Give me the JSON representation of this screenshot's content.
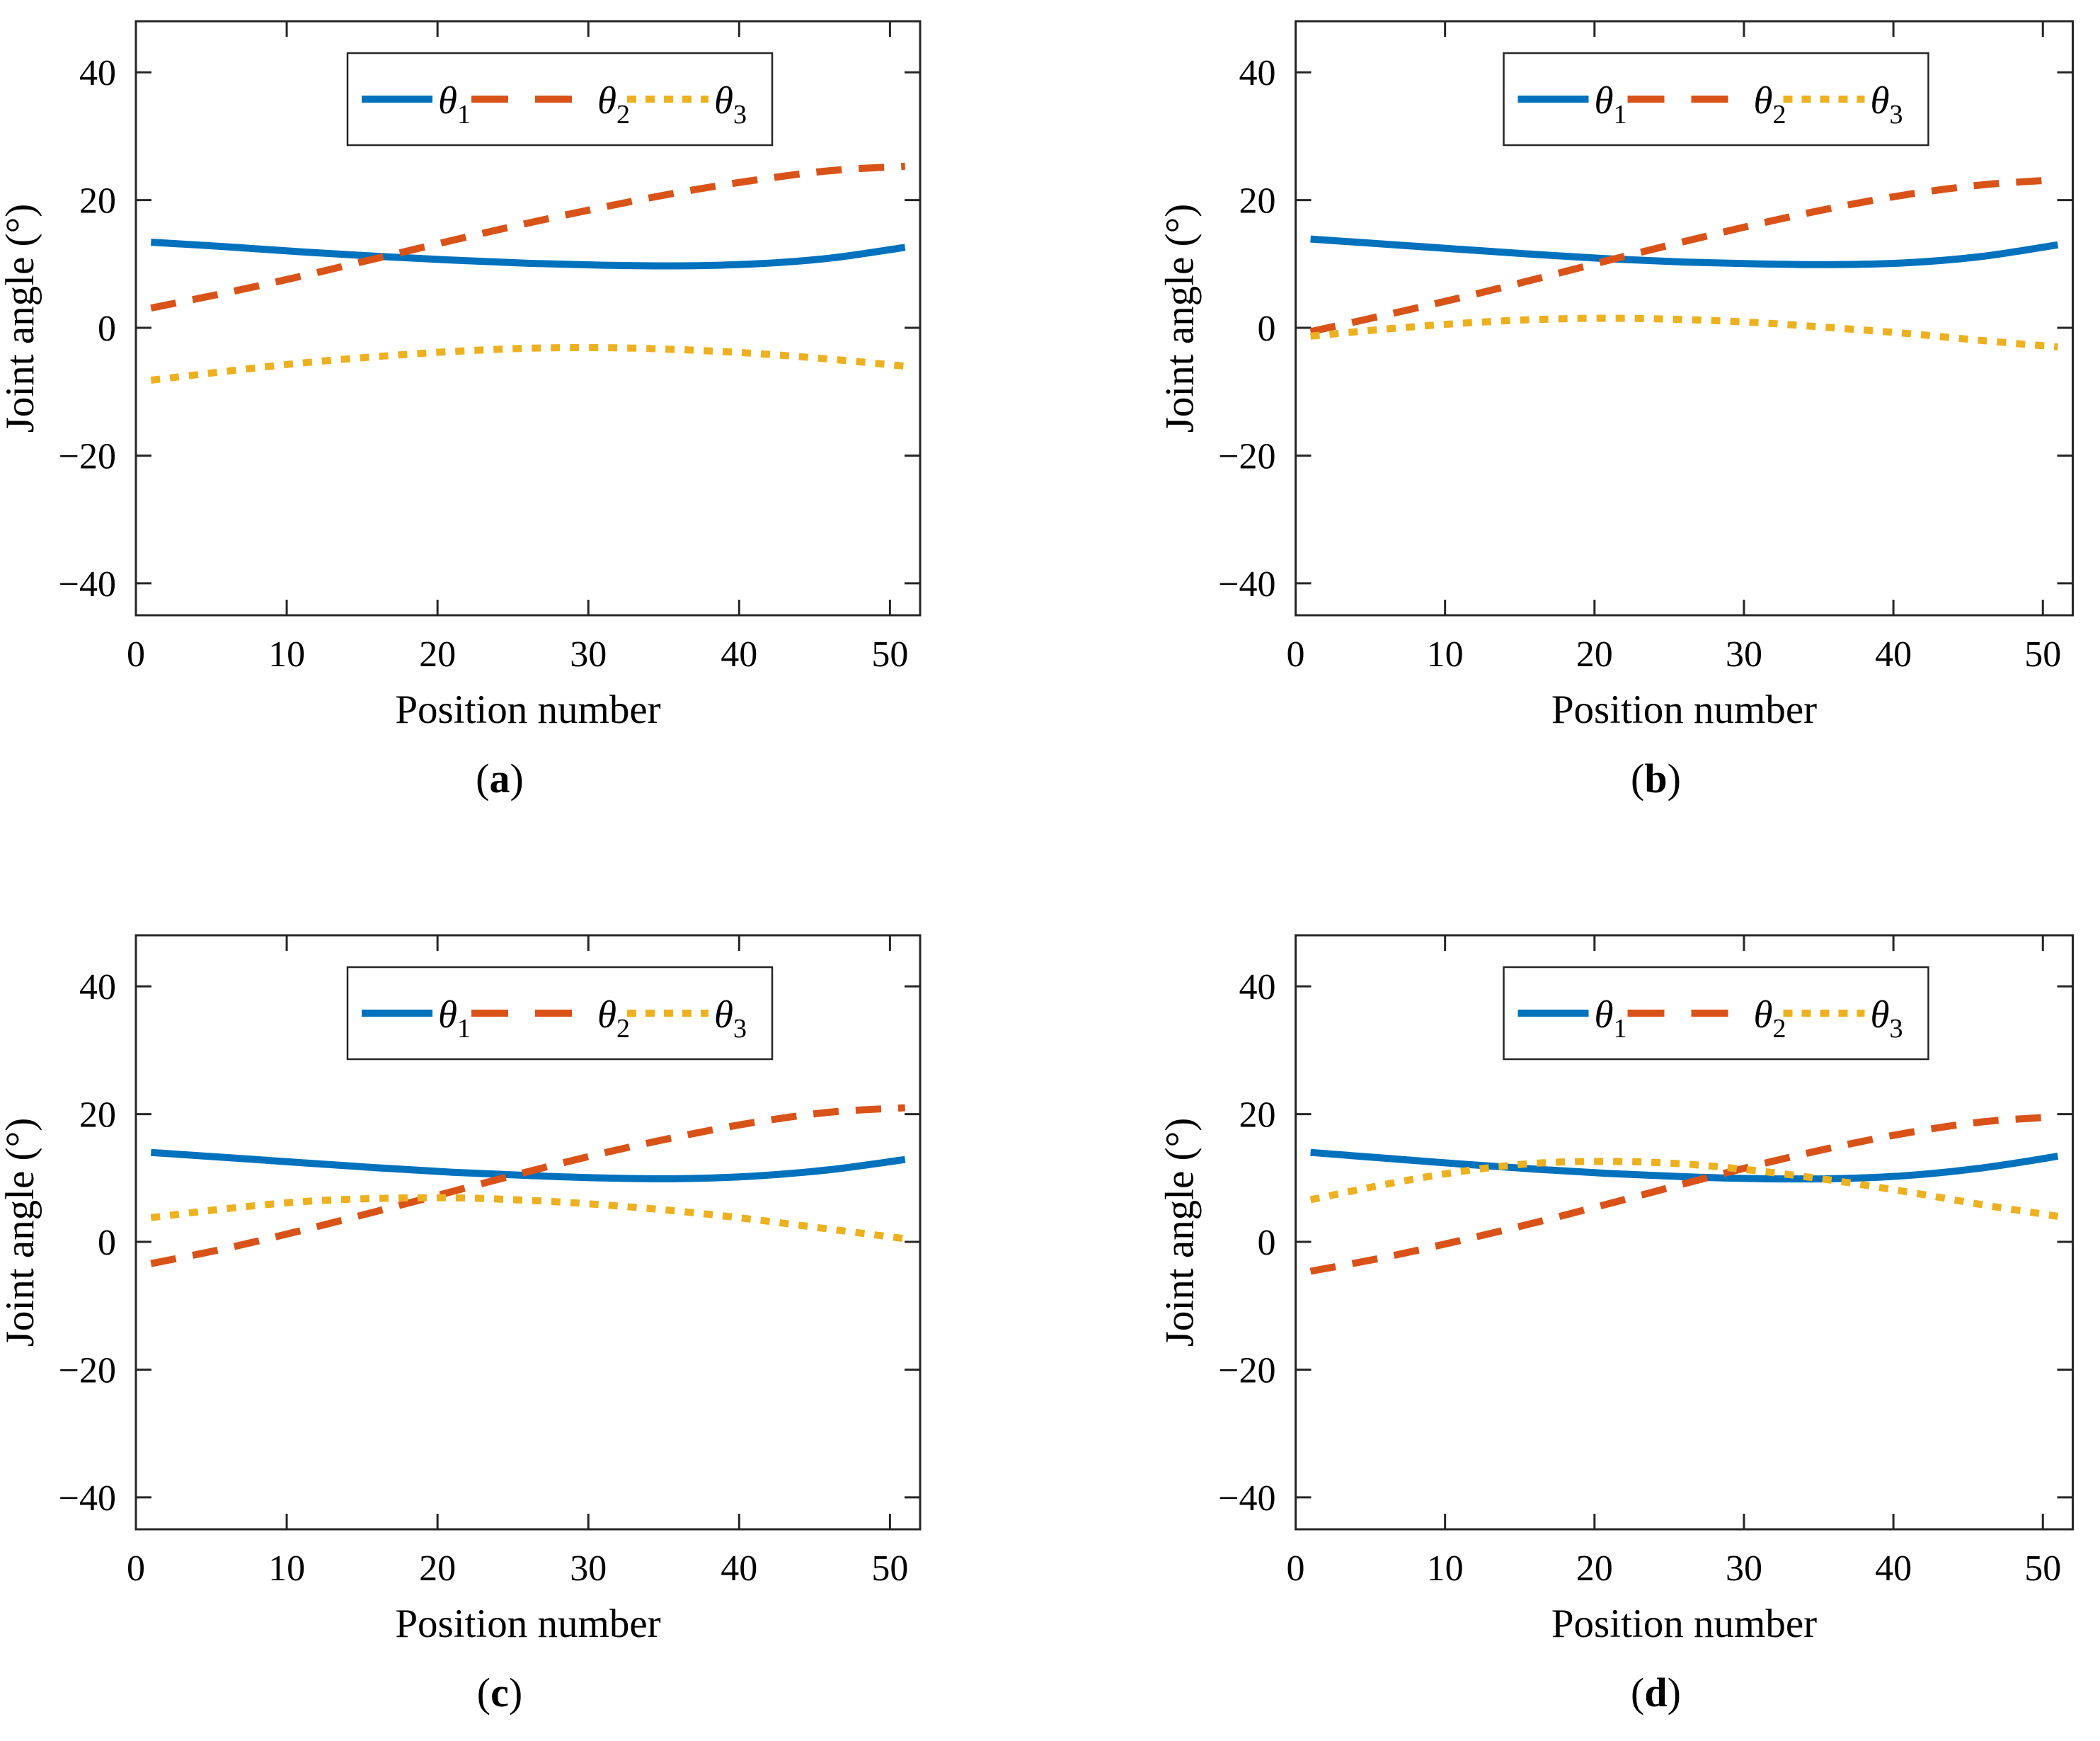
{
  "figure": {
    "background": "#ffffff",
    "axis_color": "#262626",
    "text_color": "#000000"
  },
  "chart_data": [
    {
      "type": "line",
      "subplot": "a",
      "caption": "(a)",
      "caption_letter": "a",
      "xlabel": "Position number",
      "ylabel": "Joint angle (°)",
      "xlim": [
        0,
        52
      ],
      "ylim": [
        -45,
        48
      ],
      "xticks": [
        0,
        10,
        20,
        30,
        40,
        50
      ],
      "yticks": [
        -40,
        -20,
        0,
        20,
        40
      ],
      "grid": false,
      "legend_position": "north",
      "x": [
        1,
        6,
        11,
        16,
        21,
        26,
        31,
        36,
        41,
        46,
        51
      ],
      "series": [
        {
          "name": "θ_1",
          "legend_symbol": "θ",
          "legend_subscript": "1",
          "line_style": "solid",
          "color": "#0072BD",
          "values": [
            13.4,
            12.7,
            11.9,
            11.2,
            10.6,
            10.1,
            9.8,
            9.7,
            10.0,
            10.9,
            12.6
          ]
        },
        {
          "name": "θ_2",
          "legend_symbol": "θ",
          "legend_subscript": "2",
          "line_style": "dashed",
          "color": "#D95319",
          "values": [
            3.1,
            5.5,
            8.1,
            10.9,
            13.7,
            16.4,
            18.9,
            21.2,
            23.1,
            24.6,
            25.3
          ]
        },
        {
          "name": "θ_3",
          "legend_symbol": "θ",
          "legend_subscript": "3",
          "line_style": "dotted",
          "color": "#EDB120",
          "values": [
            -8.2,
            -6.8,
            -5.5,
            -4.5,
            -3.7,
            -3.2,
            -3.1,
            -3.4,
            -4.0,
            -4.9,
            -6.0
          ]
        }
      ]
    },
    {
      "type": "line",
      "subplot": "b",
      "caption": "(b)",
      "caption_letter": "b",
      "xlabel": "Position number",
      "ylabel": "Joint angle (°)",
      "xlim": [
        0,
        52
      ],
      "ylim": [
        -45,
        48
      ],
      "xticks": [
        0,
        10,
        20,
        30,
        40,
        50
      ],
      "yticks": [
        -40,
        -20,
        0,
        20,
        40
      ],
      "grid": false,
      "legend_position": "north",
      "x": [
        1,
        6,
        11,
        16,
        21,
        26,
        31,
        36,
        41,
        46,
        51
      ],
      "series": [
        {
          "name": "θ_1",
          "legend_symbol": "θ",
          "legend_subscript": "1",
          "line_style": "solid",
          "color": "#0072BD",
          "values": [
            13.9,
            13.1,
            12.3,
            11.5,
            10.8,
            10.3,
            10.0,
            9.9,
            10.2,
            11.2,
            13.0
          ]
        },
        {
          "name": "θ_2",
          "legend_symbol": "θ",
          "legend_subscript": "2",
          "line_style": "dashed",
          "color": "#D95319",
          "values": [
            -0.6,
            2.0,
            4.7,
            7.6,
            10.6,
            13.5,
            16.3,
            18.8,
            20.9,
            22.4,
            23.2
          ]
        },
        {
          "name": "θ_3",
          "legend_symbol": "θ",
          "legend_subscript": "3",
          "line_style": "dotted",
          "color": "#EDB120",
          "values": [
            -1.3,
            -0.2,
            0.7,
            1.3,
            1.5,
            1.3,
            0.8,
            0.0,
            -0.9,
            -2.0,
            -3.0
          ]
        }
      ]
    },
    {
      "type": "line",
      "subplot": "c",
      "caption": "(c)",
      "caption_letter": "c",
      "xlabel": "Position number",
      "ylabel": "Joint angle (°)",
      "xlim": [
        0,
        52
      ],
      "ylim": [
        -45,
        48
      ],
      "xticks": [
        0,
        10,
        20,
        30,
        40,
        50
      ],
      "yticks": [
        -40,
        -20,
        0,
        20,
        40
      ],
      "grid": false,
      "legend_position": "north",
      "x": [
        1,
        6,
        11,
        16,
        21,
        26,
        31,
        36,
        41,
        46,
        51
      ],
      "series": [
        {
          "name": "θ_1",
          "legend_symbol": "θ",
          "legend_subscript": "1",
          "line_style": "solid",
          "color": "#0072BD",
          "values": [
            14.0,
            13.2,
            12.4,
            11.6,
            10.9,
            10.4,
            10.0,
            9.9,
            10.3,
            11.3,
            12.9
          ]
        },
        {
          "name": "θ_2",
          "legend_symbol": "θ",
          "legend_subscript": "2",
          "line_style": "dashed",
          "color": "#D95319",
          "values": [
            -3.4,
            -1.0,
            1.8,
            4.8,
            7.9,
            11.0,
            13.9,
            16.5,
            18.7,
            20.3,
            21.0
          ]
        },
        {
          "name": "θ_3",
          "legend_symbol": "θ",
          "legend_subscript": "3",
          "line_style": "dotted",
          "color": "#EDB120",
          "values": [
            3.8,
            5.2,
            6.3,
            6.8,
            6.9,
            6.5,
            5.8,
            4.8,
            3.5,
            2.0,
            0.5
          ]
        }
      ]
    },
    {
      "type": "line",
      "subplot": "d",
      "caption": "(d)",
      "caption_letter": "d",
      "xlabel": "Position number",
      "ylabel": "Joint angle (°)",
      "xlim": [
        0,
        52
      ],
      "ylim": [
        -45,
        48
      ],
      "xticks": [
        0,
        10,
        20,
        30,
        40,
        50
      ],
      "yticks": [
        -40,
        -20,
        0,
        20,
        40
      ],
      "grid": false,
      "legend_position": "north",
      "x": [
        1,
        6,
        11,
        16,
        21,
        26,
        31,
        36,
        41,
        46,
        51
      ],
      "series": [
        {
          "name": "θ_1",
          "legend_symbol": "θ",
          "legend_subscript": "1",
          "line_style": "solid",
          "color": "#0072BD",
          "values": [
            14.0,
            13.1,
            12.2,
            11.4,
            10.7,
            10.2,
            9.9,
            9.9,
            10.4,
            11.6,
            13.4
          ]
        },
        {
          "name": "θ_2",
          "legend_symbol": "θ",
          "legend_subscript": "2",
          "line_style": "dashed",
          "color": "#D95319",
          "values": [
            -4.6,
            -2.4,
            0.2,
            3.0,
            6.0,
            9.1,
            12.1,
            14.8,
            17.1,
            18.8,
            19.6
          ]
        },
        {
          "name": "θ_3",
          "legend_symbol": "θ",
          "legend_subscript": "3",
          "line_style": "dotted",
          "color": "#EDB120",
          "values": [
            6.6,
            9.0,
            11.0,
            12.3,
            12.6,
            12.2,
            11.1,
            9.6,
            7.8,
            5.8,
            4.0
          ]
        }
      ]
    }
  ]
}
